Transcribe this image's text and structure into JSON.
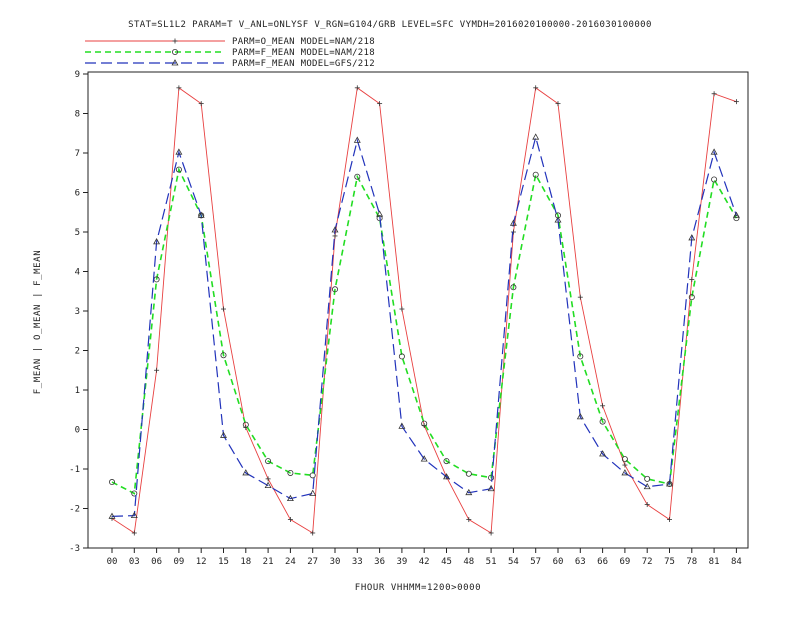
{
  "title": "STAT=SL1L2 PARAM=T V_ANL=ONLYSF V_RGN=G104/GRB LEVEL=SFC VYMDH=2016020100000-2016030100000",
  "xlabel": "FHOUR VHHMM=1200>0000",
  "ylabel": "F_MEAN | O_MEAN | F_MEAN",
  "legend": [
    {
      "label": "PARM=O_MEAN MODEL=NAM/218",
      "color": "#e84040",
      "dash": "solid",
      "marker": "plus"
    },
    {
      "label": "PARM=F_MEAN MODEL=NAM/218",
      "color": "#22dd22",
      "dash": "dashed",
      "marker": "circle"
    },
    {
      "label": "PARM=F_MEAN MODEL=GFS/212",
      "color": "#2233bb",
      "dash": "longdash",
      "marker": "triangle"
    }
  ],
  "chart_data": {
    "type": "line",
    "categories": [
      "00",
      "03",
      "06",
      "09",
      "12",
      "15",
      "18",
      "21",
      "24",
      "27",
      "30",
      "33",
      "36",
      "39",
      "42",
      "45",
      "48",
      "51",
      "54",
      "57",
      "60",
      "63",
      "66",
      "69",
      "72",
      "75",
      "78",
      "81",
      "84"
    ],
    "ylim": [
      -3,
      9
    ],
    "yticks": [
      "-3",
      "-2",
      "-1",
      "0",
      "1",
      "2",
      "3",
      "4",
      "5",
      "6",
      "7",
      "8",
      "9"
    ],
    "grid": false,
    "legend_position": "top-left",
    "series": [
      {
        "name": "PARM=O_MEAN MODEL=NAM/218",
        "color": "#e84040",
        "values": [
          -2.25,
          -2.62,
          1.5,
          8.65,
          8.25,
          3.05,
          0.05,
          -1.25,
          -2.28,
          -2.62,
          4.9,
          8.65,
          8.25,
          3.05,
          0.1,
          -1.2,
          -2.28,
          -2.62,
          5.0,
          8.65,
          8.25,
          3.35,
          0.6,
          -0.9,
          -1.9,
          -2.28,
          3.8,
          8.5,
          8.3
        ]
      },
      {
        "name": "PARM=F_MEAN MODEL=NAM/218",
        "color": "#22dd22",
        "values": [
          -1.33,
          -1.62,
          3.8,
          6.58,
          5.42,
          1.88,
          0.12,
          -0.8,
          -1.1,
          -1.16,
          3.55,
          6.4,
          5.35,
          1.85,
          0.15,
          -0.8,
          -1.12,
          -1.22,
          3.6,
          6.45,
          5.42,
          1.85,
          0.2,
          -0.75,
          -1.25,
          -1.38,
          3.35,
          6.33,
          5.35
        ]
      },
      {
        "name": "PARM=F_MEAN MODEL=GFS/212",
        "color": "#2233bb",
        "values": [
          -2.2,
          -2.18,
          4.75,
          7.02,
          5.42,
          -0.15,
          -1.1,
          -1.42,
          -1.75,
          -1.62,
          5.05,
          7.32,
          5.45,
          0.08,
          -0.75,
          -1.2,
          -1.6,
          -1.5,
          5.22,
          7.4,
          5.3,
          0.32,
          -0.62,
          -1.1,
          -1.45,
          -1.38,
          4.85,
          7.02,
          5.42
        ]
      }
    ]
  }
}
